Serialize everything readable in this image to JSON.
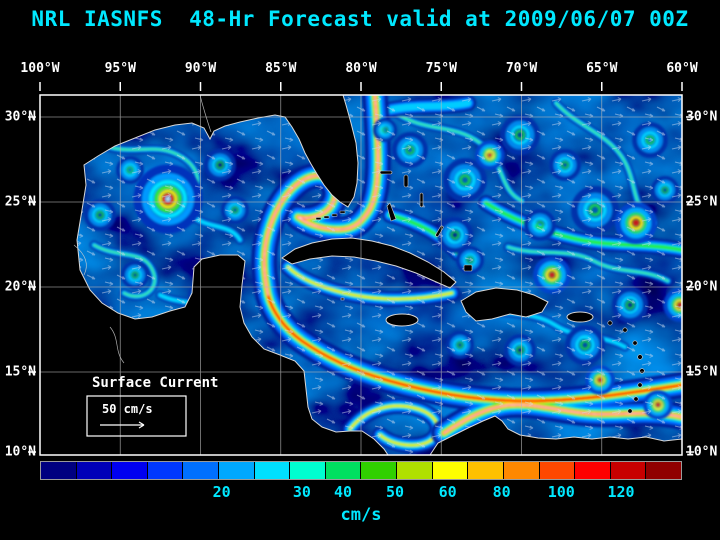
{
  "title": "NRL IASNFS  48-Hr Forecast valid at 2009/06/07 00Z",
  "map": {
    "lon_labels": [
      "100°W",
      "95°W",
      "90°W",
      "85°W",
      "80°W",
      "75°W",
      "70°W",
      "65°W",
      "60°W"
    ],
    "lat_labels": [
      "30°N",
      "25°N",
      "20°N",
      "15°N",
      "10°N"
    ],
    "annotation": {
      "label": "Surface Current",
      "scale_label": "50 cm/s"
    }
  },
  "colorbar": {
    "unit": "cm/s",
    "ticks": [
      {
        "text": "20",
        "pos": 0.283
      },
      {
        "text": "30",
        "pos": 0.408
      },
      {
        "text": "40",
        "pos": 0.472
      },
      {
        "text": "50",
        "pos": 0.553
      },
      {
        "text": "60",
        "pos": 0.635
      },
      {
        "text": "80",
        "pos": 0.719
      },
      {
        "text": "100",
        "pos": 0.812
      },
      {
        "text": "120",
        "pos": 0.905
      }
    ],
    "colors": [
      "#000080",
      "#0000b8",
      "#0000f0",
      "#0038ff",
      "#0070ff",
      "#00a8ff",
      "#00e0ff",
      "#00ffd0",
      "#00e060",
      "#30d000",
      "#b0e000",
      "#ffff00",
      "#ffc000",
      "#ff8800",
      "#ff4800",
      "#ff0000",
      "#c80000",
      "#900000"
    ]
  },
  "colors": {
    "title": "#00e8ff",
    "axis_text": "#ffffff",
    "tick_text": "#00e8ff",
    "background": "#000000"
  }
}
